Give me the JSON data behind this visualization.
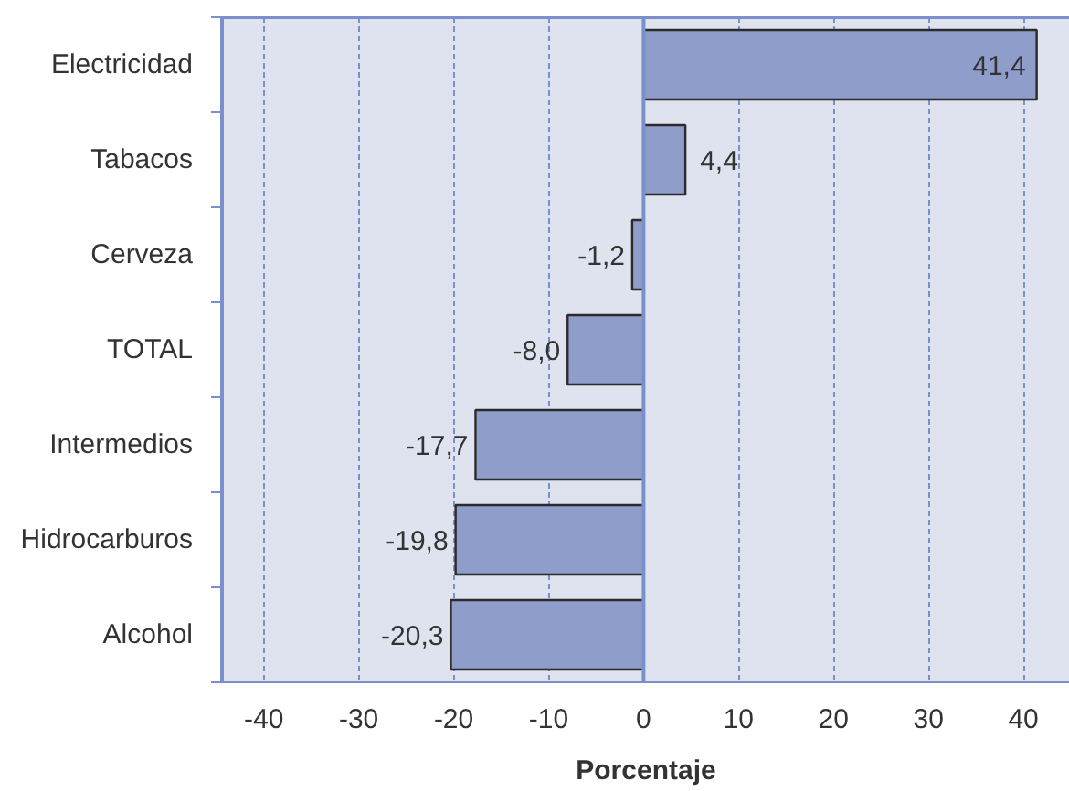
{
  "chart_data": {
    "type": "bar",
    "orientation": "horizontal",
    "categories": [
      "Electricidad",
      "Tabacos",
      "Cerveza",
      "TOTAL",
      "Intermedios",
      "Hidrocarburos",
      "Alcohol"
    ],
    "values": [
      41.4,
      4.4,
      -1.2,
      -8.0,
      -17.7,
      -19.8,
      -20.3
    ],
    "value_labels": [
      "41,4",
      "4,4",
      "-1,2",
      "-8,0",
      "-17,7",
      "-19,8",
      "-20,3"
    ],
    "color": "#8f9dca",
    "xlabel": "Porcentaje",
    "xlim": [
      -44.4,
      44.9
    ],
    "xticks": [
      -40,
      -30,
      -20,
      -10,
      0,
      10,
      20,
      30,
      40
    ],
    "grid": "x",
    "ref_lines": [
      {
        "axis": "x",
        "value": 0,
        "color": "#7b8fcb",
        "line_style": "solid"
      }
    ]
  }
}
